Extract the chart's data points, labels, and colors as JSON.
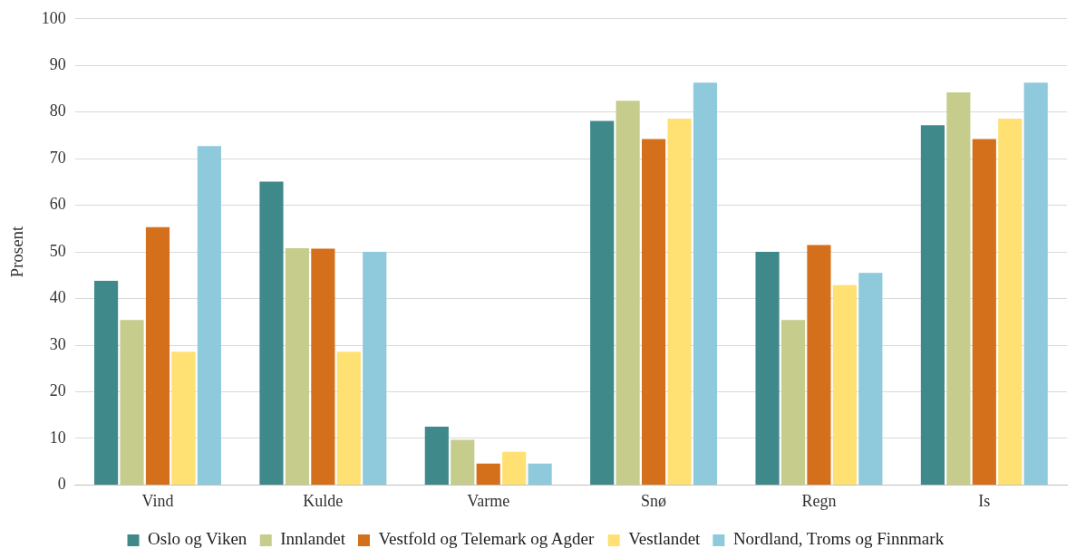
{
  "chart_data": {
    "type": "bar",
    "ylabel": "Prosent",
    "categories": [
      "Vind",
      "Kulde",
      "Varme",
      "Snø",
      "Regn",
      "Is"
    ],
    "series": [
      {
        "name": "Oslo og Viken",
        "color": "#3f898b",
        "values": [
          43.8,
          65.1,
          12.5,
          78.1,
          50.0,
          77.2
        ]
      },
      {
        "name": "Innlandet",
        "color": "#c6cd8c",
        "values": [
          35.4,
          50.8,
          9.7,
          82.4,
          35.4,
          84.2
        ]
      },
      {
        "name": "Vestfold og Telemark og Agder",
        "color": "#d4701b",
        "values": [
          55.3,
          50.7,
          4.6,
          74.2,
          51.5,
          74.2
        ]
      },
      {
        "name": "Vestlandet",
        "color": "#ffe072",
        "values": [
          28.6,
          28.6,
          7.1,
          78.6,
          42.9,
          78.6
        ]
      },
      {
        "name": "Nordland, Troms og Finnmark",
        "color": "#8ecadb",
        "values": [
          72.7,
          50.0,
          4.6,
          86.3,
          45.5,
          86.3
        ]
      }
    ],
    "ylim": [
      0,
      100
    ],
    "yticks": [
      0,
      10,
      20,
      30,
      40,
      50,
      60,
      70,
      80,
      90,
      100
    ],
    "grid": "y",
    "legend": "bottom"
  }
}
